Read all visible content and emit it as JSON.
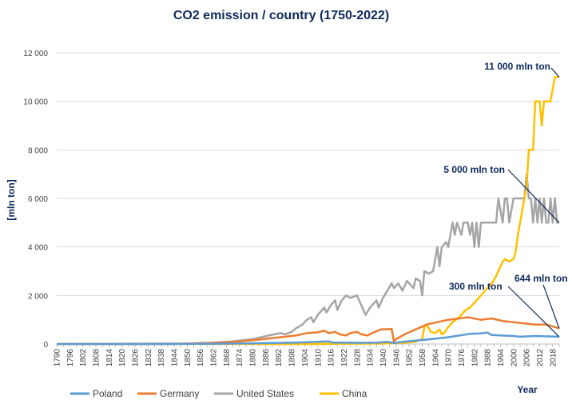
{
  "chart_data": {
    "type": "line",
    "title": "CO2 emission / country (1750-2022)",
    "xlabel": "Year",
    "ylabel": "[mln ton]",
    "xlim": [
      1790,
      2021
    ],
    "ylim": [
      0,
      12000
    ],
    "y_ticks": [
      "0",
      "2 000",
      "4 000",
      "6 000",
      "8 000",
      "10 000",
      "12 000"
    ],
    "x_tick_start": 1790,
    "x_tick_step": 3,
    "x_tick_end": 2021,
    "x_tick_label_every": 2,
    "grid": "horizontal",
    "legend_position": "bottom",
    "series": [
      {
        "name": "Poland",
        "color": "#5b9bd5",
        "points": [
          [
            1790,
            0
          ],
          [
            1840,
            0
          ],
          [
            1860,
            10
          ],
          [
            1880,
            30
          ],
          [
            1900,
            60
          ],
          [
            1910,
            90
          ],
          [
            1915,
            110
          ],
          [
            1917,
            60
          ],
          [
            1920,
            60
          ],
          [
            1930,
            50
          ],
          [
            1938,
            60
          ],
          [
            1942,
            90
          ],
          [
            1945,
            40
          ],
          [
            1950,
            100
          ],
          [
            1960,
            180
          ],
          [
            1970,
            280
          ],
          [
            1980,
            420
          ],
          [
            1985,
            440
          ],
          [
            1988,
            470
          ],
          [
            1990,
            370
          ],
          [
            2000,
            330
          ],
          [
            2003,
            300
          ],
          [
            2010,
            330
          ],
          [
            2021,
            300
          ]
        ]
      },
      {
        "name": "Germany",
        "color": "#ed7d31",
        "points": [
          [
            1790,
            0
          ],
          [
            1840,
            0
          ],
          [
            1850,
            20
          ],
          [
            1860,
            40
          ],
          [
            1870,
            80
          ],
          [
            1880,
            150
          ],
          [
            1890,
            250
          ],
          [
            1900,
            350
          ],
          [
            1905,
            450
          ],
          [
            1910,
            480
          ],
          [
            1913,
            550
          ],
          [
            1915,
            450
          ],
          [
            1918,
            500
          ],
          [
            1920,
            400
          ],
          [
            1923,
            350
          ],
          [
            1925,
            450
          ],
          [
            1928,
            500
          ],
          [
            1930,
            400
          ],
          [
            1933,
            350
          ],
          [
            1935,
            450
          ],
          [
            1939,
            600
          ],
          [
            1944,
            620
          ],
          [
            1945,
            100
          ],
          [
            1946,
            200
          ],
          [
            1950,
            400
          ],
          [
            1955,
            600
          ],
          [
            1960,
            800
          ],
          [
            1965,
            900
          ],
          [
            1970,
            1000
          ],
          [
            1975,
            1050
          ],
          [
            1979,
            1100
          ],
          [
            1985,
            1000
          ],
          [
            1990,
            1050
          ],
          [
            1995,
            950
          ],
          [
            2000,
            900
          ],
          [
            2005,
            850
          ],
          [
            2010,
            800
          ],
          [
            2015,
            800
          ],
          [
            2019,
            700
          ],
          [
            2021,
            644
          ]
        ]
      },
      {
        "name": "United States",
        "color": "#a5a5a5",
        "points": [
          [
            1790,
            0
          ],
          [
            1850,
            20
          ],
          [
            1860,
            50
          ],
          [
            1870,
            100
          ],
          [
            1875,
            150
          ],
          [
            1880,
            200
          ],
          [
            1885,
            300
          ],
          [
            1890,
            400
          ],
          [
            1893,
            450
          ],
          [
            1895,
            400
          ],
          [
            1898,
            500
          ],
          [
            1900,
            650
          ],
          [
            1903,
            800
          ],
          [
            1905,
            1000
          ],
          [
            1907,
            1100
          ],
          [
            1908,
            900
          ],
          [
            1910,
            1200
          ],
          [
            1913,
            1500
          ],
          [
            1914,
            1300
          ],
          [
            1916,
            1600
          ],
          [
            1918,
            1800
          ],
          [
            1919,
            1400
          ],
          [
            1921,
            1800
          ],
          [
            1923,
            2000
          ],
          [
            1925,
            1900
          ],
          [
            1928,
            2000
          ],
          [
            1931,
            1400
          ],
          [
            1932,
            1200
          ],
          [
            1934,
            1500
          ],
          [
            1937,
            1800
          ],
          [
            1938,
            1500
          ],
          [
            1940,
            1900
          ],
          [
            1942,
            2200
          ],
          [
            1944,
            2500
          ],
          [
            1945,
            2300
          ],
          [
            1947,
            2500
          ],
          [
            1949,
            2200
          ],
          [
            1951,
            2600
          ],
          [
            1954,
            2300
          ],
          [
            1955,
            2700
          ],
          [
            1957,
            2600
          ],
          [
            1958,
            2000
          ],
          [
            1959,
            3000
          ],
          [
            1961,
            2900
          ],
          [
            1963,
            3000
          ],
          [
            1965,
            4000
          ],
          [
            1966,
            3200
          ],
          [
            1967,
            4000
          ],
          [
            1969,
            4200
          ],
          [
            1970,
            4000
          ],
          [
            1972,
            5000
          ],
          [
            1973,
            4500
          ],
          [
            1974,
            5000
          ],
          [
            1976,
            4500
          ],
          [
            1977,
            5000
          ],
          [
            1979,
            5000
          ],
          [
            1980,
            4500
          ],
          [
            1981,
            5000
          ],
          [
            1982,
            4000
          ],
          [
            1983,
            5000
          ],
          [
            1984,
            4000
          ],
          [
            1985,
            5000
          ],
          [
            1990,
            5000
          ],
          [
            1992,
            5000
          ],
          [
            1993,
            6000
          ],
          [
            1995,
            5000
          ],
          [
            1996,
            6000
          ],
          [
            1997,
            6000
          ],
          [
            1998,
            5000
          ],
          [
            2000,
            6000
          ],
          [
            2005,
            6000
          ],
          [
            2006,
            7000
          ],
          [
            2007,
            6000
          ],
          [
            2008,
            6000
          ],
          [
            2009,
            5000
          ],
          [
            2010,
            6000
          ],
          [
            2011,
            5000
          ],
          [
            2012,
            6000
          ],
          [
            2013,
            5000
          ],
          [
            2014,
            6000
          ],
          [
            2015,
            5000
          ],
          [
            2016,
            5000
          ],
          [
            2017,
            6000
          ],
          [
            2018,
            5000
          ],
          [
            2019,
            6000
          ],
          [
            2020,
            5000
          ],
          [
            2021,
            5000
          ]
        ]
      },
      {
        "name": "China",
        "color": "#ffc000",
        "points": [
          [
            1790,
            0
          ],
          [
            1900,
            0
          ],
          [
            1940,
            20
          ],
          [
            1950,
            50
          ],
          [
            1955,
            100
          ],
          [
            1958,
            200
          ],
          [
            1959,
            700
          ],
          [
            1960,
            800
          ],
          [
            1962,
            500
          ],
          [
            1964,
            450
          ],
          [
            1966,
            600
          ],
          [
            1967,
            400
          ],
          [
            1968,
            450
          ],
          [
            1970,
            700
          ],
          [
            1972,
            900
          ],
          [
            1975,
            1100
          ],
          [
            1978,
            1400
          ],
          [
            1980,
            1500
          ],
          [
            1982,
            1700
          ],
          [
            1985,
            2000
          ],
          [
            1988,
            2300
          ],
          [
            1990,
            2500
          ],
          [
            1992,
            2800
          ],
          [
            1995,
            3400
          ],
          [
            1996,
            3500
          ],
          [
            1998,
            3400
          ],
          [
            2000,
            3500
          ],
          [
            2001,
            3800
          ],
          [
            2002,
            4500
          ],
          [
            2004,
            5500
          ],
          [
            2005,
            6000
          ],
          [
            2006,
            6500
          ],
          [
            2007,
            8000
          ],
          [
            2009,
            8000
          ],
          [
            2010,
            10000
          ],
          [
            2012,
            10000
          ],
          [
            2013,
            9000
          ],
          [
            2014,
            10000
          ],
          [
            2016,
            10000
          ],
          [
            2017,
            10000
          ],
          [
            2019,
            11000
          ],
          [
            2021,
            11000
          ]
        ]
      }
    ],
    "annotations": [
      {
        "text": "11 000 mln ton",
        "x": 2021,
        "y": 11000
      },
      {
        "text": "5 000 mln ton",
        "x": 2021,
        "y": 5000
      },
      {
        "text": "300 mln ton",
        "x": 2021,
        "y": 300
      },
      {
        "text": "644 mln ton",
        "x": 2021,
        "y": 644
      }
    ]
  }
}
